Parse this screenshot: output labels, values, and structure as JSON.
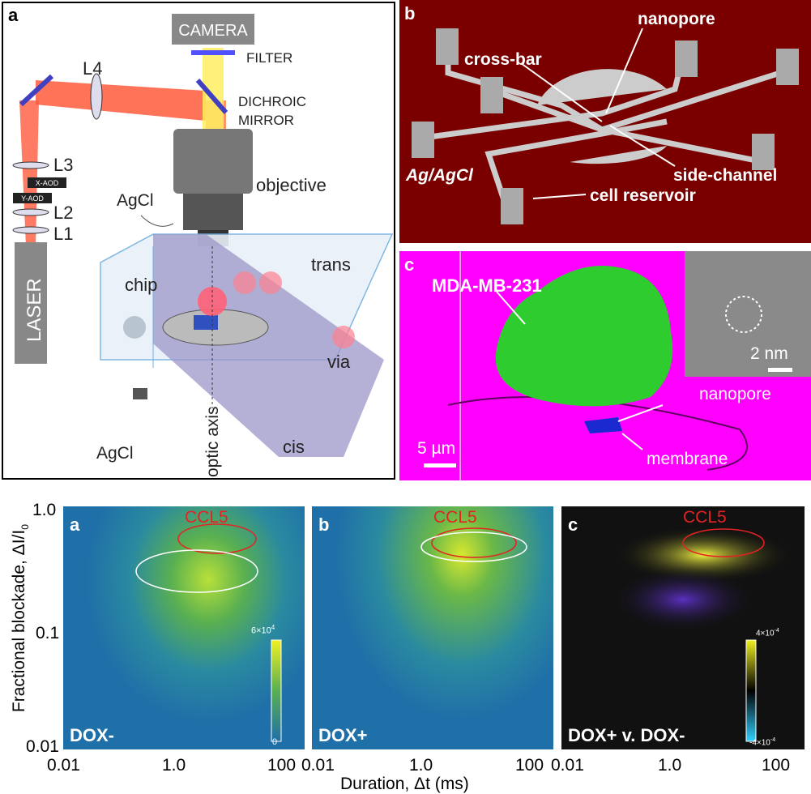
{
  "top_left": {
    "panel_letter": "a",
    "labels": {
      "camera": "CAMERA",
      "filter": "FILTER",
      "l4": "L4",
      "dichroic": "DICHROIC",
      "mirror": "MIRROR",
      "l3": "L3",
      "x_aod": "X-AOD",
      "y_aod": "Y-AOD",
      "l2": "L2",
      "l1": "L1",
      "laser": "LASER",
      "objective": "objective",
      "agcl_top": "AgCl",
      "trans": "trans",
      "chip": "chip",
      "via": "via",
      "optic_axis": "optic axis",
      "agcl_bottom": "AgCl",
      "cis": "cis"
    }
  },
  "top_right_b": {
    "panel_letter": "b",
    "labels": {
      "nanopore": "nanopore",
      "cross_bar": "cross-bar",
      "ag_agcl": "Ag/AgCl",
      "side_channel": "side-channel",
      "cell_reservoir": "cell reservoir"
    }
  },
  "top_right_c": {
    "panel_letter": "c",
    "labels": {
      "cell": "MDA-MB-231",
      "scale_inset": "2 nm",
      "nanopore": "nanopore",
      "scale_main": "5 µm",
      "membrane": "membrane"
    }
  },
  "bottom": {
    "y_axis_label": "Fractional blockade, ΔI/I",
    "y_axis_sub": "0",
    "x_axis_label": "Duration, Δt (ms)",
    "y_ticks": [
      "1.0",
      "0.1",
      "0.01"
    ],
    "x_ticks": [
      "0.01",
      "1.0",
      "100"
    ],
    "x_ticks_last": [
      "0.01",
      "1.0",
      "100"
    ],
    "panels": [
      {
        "letter": "a",
        "tag": "CCL5",
        "condition": "DOX-",
        "scale_max": "6×10",
        "scale_max_exp": "4",
        "scale_min": "0"
      },
      {
        "letter": "b",
        "tag": "CCL5",
        "condition": "DOX+"
      },
      {
        "letter": "c",
        "tag": "CCL5",
        "condition": "DOX+ v. DOX-",
        "scale_max": "4×10",
        "scale_max_exp": "-4",
        "scale_min": "-4×10",
        "scale_min_exp": "-4"
      }
    ]
  },
  "colors": {
    "maroon_bg": "#7a0000",
    "magenta_bg": "#ff00ff",
    "heat_bg": "#1f6fa8",
    "ccl5_red": "#e52222",
    "cell_green": "#2ecc2e"
  }
}
